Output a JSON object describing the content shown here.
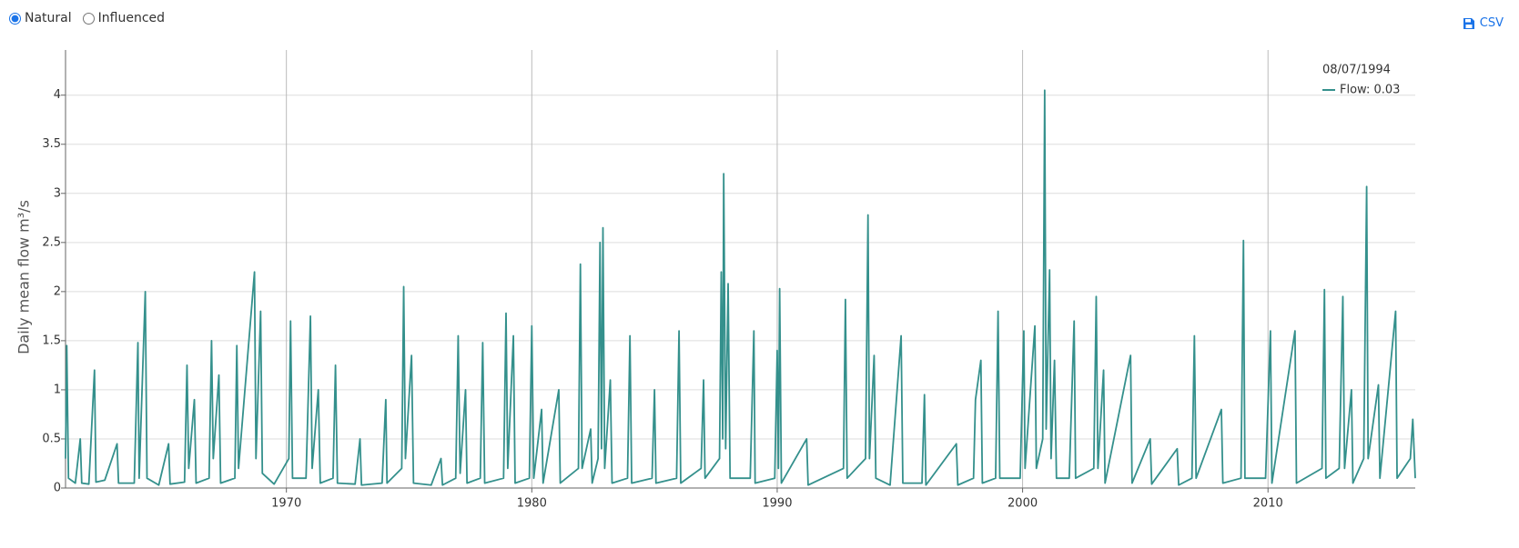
{
  "controls": {
    "options": [
      "Natural",
      "Influenced"
    ],
    "selected": 0,
    "download": "CSV"
  },
  "tooltip": {
    "date": "08/07/1994",
    "label": "Flow: 0.03"
  },
  "chart_data": {
    "type": "line",
    "y_label": "Daily mean flow m³/s",
    "xlim": [
      1961,
      2016
    ],
    "xticks": [
      1970,
      1980,
      1990,
      2000,
      2010
    ],
    "ylim": [
      0,
      4.46
    ],
    "yticks": [
      0,
      0.5,
      1,
      1.5,
      2,
      2.5,
      3,
      3.5,
      4
    ],
    "grid": true,
    "series": [
      {
        "name": "Flow",
        "color": "#34908c",
        "x": [
          1961.0,
          1961.05,
          1961.12,
          1961.4,
          1961.6,
          1961.66,
          1961.95,
          1962.18,
          1962.24,
          1962.6,
          1963.1,
          1963.16,
          1963.8,
          1963.95,
          1964.0,
          1964.25,
          1964.32,
          1964.8,
          1965.2,
          1965.26,
          1965.85,
          1965.95,
          1966.02,
          1966.25,
          1966.32,
          1966.85,
          1966.95,
          1967.02,
          1967.25,
          1967.32,
          1967.9,
          1967.98,
          1968.05,
          1968.7,
          1968.76,
          1968.95,
          1969.02,
          1969.5,
          1970.1,
          1970.17,
          1970.25,
          1970.8,
          1970.98,
          1971.05,
          1971.3,
          1971.38,
          1971.9,
          1972.0,
          1972.08,
          1972.8,
          1973.0,
          1973.06,
          1973.9,
          1974.05,
          1974.1,
          1974.7,
          1974.78,
          1974.85,
          1975.1,
          1975.18,
          1975.9,
          1976.3,
          1976.36,
          1976.9,
          1977.0,
          1977.08,
          1977.3,
          1977.36,
          1977.9,
          1978.0,
          1978.08,
          1978.85,
          1978.95,
          1979.02,
          1979.25,
          1979.32,
          1979.9,
          1980.0,
          1980.08,
          1980.4,
          1980.46,
          1981.1,
          1981.16,
          1981.9,
          1981.98,
          1982.05,
          1982.4,
          1982.46,
          1982.7,
          1982.78,
          1982.84,
          1982.9,
          1982.97,
          1983.2,
          1983.27,
          1983.9,
          1984.0,
          1984.07,
          1984.9,
          1985.0,
          1985.06,
          1985.9,
          1986.0,
          1986.07,
          1986.9,
          1987.0,
          1987.06,
          1987.65,
          1987.72,
          1987.78,
          1987.82,
          1987.9,
          1988.0,
          1988.08,
          1988.9,
          1989.05,
          1989.1,
          1989.9,
          1990.0,
          1990.05,
          1990.1,
          1990.17,
          1991.2,
          1991.26,
          1992.7,
          1992.78,
          1992.85,
          1993.6,
          1993.7,
          1993.76,
          1993.95,
          1994.02,
          1994.6,
          1995.05,
          1995.12,
          1995.9,
          1996.0,
          1996.06,
          1997.3,
          1997.36,
          1998.0,
          1998.08,
          1998.3,
          1998.36,
          1998.9,
          1999.0,
          1999.07,
          1999.9,
          2000.05,
          2000.1,
          2000.5,
          2000.56,
          2000.82,
          2000.9,
          2000.96,
          2001.1,
          2001.16,
          2001.3,
          2001.38,
          2001.9,
          2002.1,
          2002.16,
          2002.9,
          2003.0,
          2003.07,
          2003.3,
          2003.36,
          2004.4,
          2004.46,
          2005.2,
          2005.26,
          2006.3,
          2006.36,
          2006.9,
          2007.0,
          2007.07,
          2008.1,
          2008.16,
          2008.9,
          2009.0,
          2009.06,
          2009.9,
          2010.1,
          2010.16,
          2011.1,
          2011.16,
          2012.2,
          2012.3,
          2012.36,
          2012.9,
          2013.05,
          2013.12,
          2013.4,
          2013.46,
          2013.9,
          2014.02,
          2014.08,
          2014.5,
          2014.56,
          2015.2,
          2015.26,
          2015.8,
          2015.9,
          2016.0
        ],
        "values": [
          0.3,
          1.45,
          0.1,
          0.05,
          0.5,
          0.05,
          0.04,
          1.2,
          0.06,
          0.08,
          0.45,
          0.05,
          0.05,
          1.48,
          0.1,
          2.0,
          0.1,
          0.03,
          0.45,
          0.04,
          0.06,
          1.25,
          0.2,
          0.9,
          0.05,
          0.1,
          1.5,
          0.3,
          1.15,
          0.05,
          0.1,
          1.45,
          0.2,
          2.2,
          0.3,
          1.8,
          0.15,
          0.04,
          0.3,
          1.7,
          0.1,
          0.1,
          1.75,
          0.2,
          1.0,
          0.05,
          0.1,
          1.25,
          0.05,
          0.04,
          0.5,
          0.03,
          0.05,
          0.9,
          0.05,
          0.2,
          2.05,
          0.3,
          1.35,
          0.05,
          0.03,
          0.3,
          0.03,
          0.1,
          1.55,
          0.15,
          1.0,
          0.05,
          0.1,
          1.48,
          0.05,
          0.1,
          1.78,
          0.2,
          1.55,
          0.05,
          0.1,
          1.65,
          0.1,
          0.8,
          0.05,
          1.0,
          0.05,
          0.2,
          2.28,
          0.2,
          0.6,
          0.05,
          0.3,
          2.5,
          0.4,
          2.65,
          0.2,
          1.1,
          0.05,
          0.1,
          1.55,
          0.05,
          0.1,
          1.0,
          0.05,
          0.1,
          1.6,
          0.05,
          0.2,
          1.1,
          0.1,
          0.3,
          2.2,
          0.5,
          3.2,
          0.4,
          2.08,
          0.1,
          0.1,
          1.6,
          0.05,
          0.1,
          1.4,
          0.2,
          2.03,
          0.05,
          0.5,
          0.03,
          0.2,
          1.92,
          0.1,
          0.3,
          2.78,
          0.3,
          1.35,
          0.1,
          0.03,
          1.55,
          0.05,
          0.05,
          0.95,
          0.03,
          0.45,
          0.03,
          0.1,
          0.9,
          1.3,
          0.05,
          0.1,
          1.8,
          0.1,
          0.1,
          1.6,
          0.2,
          1.65,
          0.2,
          0.5,
          4.05,
          0.6,
          2.22,
          0.3,
          1.3,
          0.1,
          0.1,
          1.7,
          0.1,
          0.2,
          1.95,
          0.2,
          1.2,
          0.05,
          1.35,
          0.05,
          0.5,
          0.04,
          0.4,
          0.03,
          0.1,
          1.55,
          0.1,
          0.8,
          0.05,
          0.1,
          2.52,
          0.1,
          0.1,
          1.6,
          0.05,
          1.6,
          0.05,
          0.2,
          2.02,
          0.1,
          0.2,
          1.95,
          0.2,
          1.0,
          0.05,
          0.3,
          3.07,
          0.3,
          1.05,
          0.1,
          1.8,
          0.1,
          0.3,
          0.7,
          0.1
        ]
      }
    ]
  }
}
